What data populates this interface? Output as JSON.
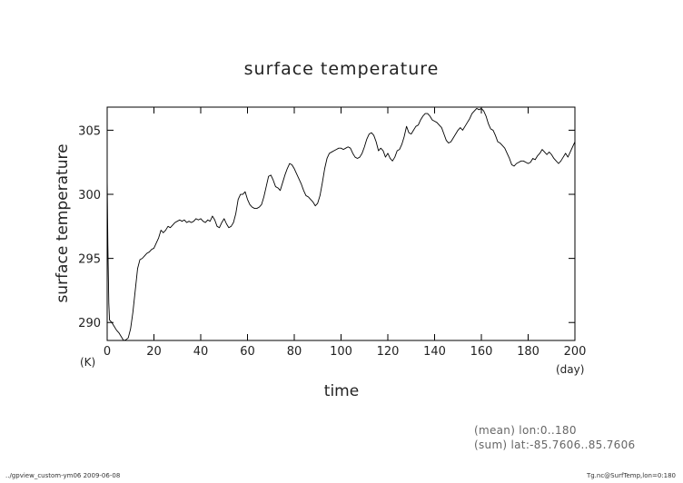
{
  "chart_data": {
    "type": "line",
    "title": "surface temperature",
    "xlabel": "time",
    "xunit": "(day)",
    "ylabel": "surface temperature",
    "yunit": "(K)",
    "xlim": [
      0,
      200
    ],
    "ylim": [
      288.6,
      306.8
    ],
    "xticks": [
      0,
      20,
      40,
      60,
      80,
      100,
      120,
      140,
      160,
      180,
      200
    ],
    "yticks": [
      290,
      295,
      300,
      305
    ],
    "grid": false,
    "series": [
      {
        "color": "#000000",
        "points": [
          [
            0,
            301.3
          ],
          [
            0.3,
            296
          ],
          [
            0.7,
            291.5
          ],
          [
            1,
            290.2
          ],
          [
            2,
            290.0
          ],
          [
            3,
            289.7
          ],
          [
            4,
            289.4
          ],
          [
            5,
            289.2
          ],
          [
            6,
            288.9
          ],
          [
            7,
            288.6
          ],
          [
            8,
            288.65
          ],
          [
            9,
            288.8
          ],
          [
            10,
            289.5
          ],
          [
            11,
            290.8
          ],
          [
            12,
            292.5
          ],
          [
            13,
            294.2
          ],
          [
            14,
            294.9
          ],
          [
            15,
            295.0
          ],
          [
            16,
            295.2
          ],
          [
            17,
            295.4
          ],
          [
            18,
            295.5
          ],
          [
            19,
            295.7
          ],
          [
            20,
            295.8
          ],
          [
            21,
            296.2
          ],
          [
            22,
            296.6
          ],
          [
            23,
            297.2
          ],
          [
            24,
            297.0
          ],
          [
            25,
            297.2
          ],
          [
            26,
            297.5
          ],
          [
            27,
            297.4
          ],
          [
            28,
            297.6
          ],
          [
            29,
            297.8
          ],
          [
            30,
            297.9
          ],
          [
            31,
            298.0
          ],
          [
            32,
            297.9
          ],
          [
            33,
            298.0
          ],
          [
            34,
            297.8
          ],
          [
            35,
            297.9
          ],
          [
            36,
            297.8
          ],
          [
            37,
            297.9
          ],
          [
            38,
            298.1
          ],
          [
            39,
            298.0
          ],
          [
            40,
            298.1
          ],
          [
            41,
            297.9
          ],
          [
            42,
            297.8
          ],
          [
            43,
            298.0
          ],
          [
            44,
            297.9
          ],
          [
            45,
            298.3
          ],
          [
            46,
            298.0
          ],
          [
            47,
            297.5
          ],
          [
            48,
            297.4
          ],
          [
            49,
            297.8
          ],
          [
            50,
            298.1
          ],
          [
            51,
            297.7
          ],
          [
            52,
            297.4
          ],
          [
            53,
            297.5
          ],
          [
            54,
            297.8
          ],
          [
            55,
            298.5
          ],
          [
            56,
            299.6
          ],
          [
            57,
            300.0
          ],
          [
            58,
            300.0
          ],
          [
            59,
            300.2
          ],
          [
            60,
            299.6
          ],
          [
            61,
            299.2
          ],
          [
            62,
            299.0
          ],
          [
            63,
            298.9
          ],
          [
            64,
            298.9
          ],
          [
            65,
            299.0
          ],
          [
            66,
            299.2
          ],
          [
            67,
            299.8
          ],
          [
            68,
            300.6
          ],
          [
            69,
            301.4
          ],
          [
            70,
            301.5
          ],
          [
            71,
            301.1
          ],
          [
            72,
            300.6
          ],
          [
            73,
            300.5
          ],
          [
            74,
            300.3
          ],
          [
            75,
            300.9
          ],
          [
            76,
            301.5
          ],
          [
            77,
            302.0
          ],
          [
            78,
            302.4
          ],
          [
            79,
            302.3
          ],
          [
            80,
            302.0
          ],
          [
            81,
            301.6
          ],
          [
            82,
            301.2
          ],
          [
            83,
            300.8
          ],
          [
            84,
            300.3
          ],
          [
            85,
            299.9
          ],
          [
            86,
            299.8
          ],
          [
            87,
            299.6
          ],
          [
            88,
            299.4
          ],
          [
            89,
            299.1
          ],
          [
            90,
            299.3
          ],
          [
            91,
            299.9
          ],
          [
            92,
            300.9
          ],
          [
            93,
            302.0
          ],
          [
            94,
            302.8
          ],
          [
            95,
            303.2
          ],
          [
            96,
            303.3
          ],
          [
            97,
            303.4
          ],
          [
            98,
            303.5
          ],
          [
            99,
            303.6
          ],
          [
            100,
            303.6
          ],
          [
            101,
            303.5
          ],
          [
            102,
            303.6
          ],
          [
            103,
            303.7
          ],
          [
            104,
            303.6
          ],
          [
            105,
            303.2
          ],
          [
            106,
            302.9
          ],
          [
            107,
            302.8
          ],
          [
            108,
            302.9
          ],
          [
            109,
            303.2
          ],
          [
            110,
            303.7
          ],
          [
            111,
            304.3
          ],
          [
            112,
            304.7
          ],
          [
            113,
            304.8
          ],
          [
            114,
            304.6
          ],
          [
            115,
            304.1
          ],
          [
            116,
            303.4
          ],
          [
            117,
            303.6
          ],
          [
            118,
            303.4
          ],
          [
            119,
            302.9
          ],
          [
            120,
            303.2
          ],
          [
            121,
            302.8
          ],
          [
            122,
            302.6
          ],
          [
            123,
            302.9
          ],
          [
            124,
            303.4
          ],
          [
            125,
            303.5
          ],
          [
            126,
            303.9
          ],
          [
            127,
            304.5
          ],
          [
            128,
            305.3
          ],
          [
            129,
            304.8
          ],
          [
            130,
            304.7
          ],
          [
            131,
            305.0
          ],
          [
            132,
            305.3
          ],
          [
            133,
            305.4
          ],
          [
            134,
            305.8
          ],
          [
            135,
            306.1
          ],
          [
            136,
            306.3
          ],
          [
            137,
            306.3
          ],
          [
            138,
            306.1
          ],
          [
            139,
            305.8
          ],
          [
            140,
            305.7
          ],
          [
            141,
            305.6
          ],
          [
            142,
            305.4
          ],
          [
            143,
            305.2
          ],
          [
            144,
            304.7
          ],
          [
            145,
            304.2
          ],
          [
            146,
            304.0
          ],
          [
            147,
            304.1
          ],
          [
            148,
            304.4
          ],
          [
            149,
            304.7
          ],
          [
            150,
            305.0
          ],
          [
            151,
            305.2
          ],
          [
            152,
            305.0
          ],
          [
            153,
            305.3
          ],
          [
            154,
            305.6
          ],
          [
            155,
            305.9
          ],
          [
            156,
            306.3
          ],
          [
            157,
            306.5
          ],
          [
            158,
            306.7
          ],
          [
            159,
            306.6
          ],
          [
            160,
            306.7
          ],
          [
            161,
            306.5
          ],
          [
            162,
            306.1
          ],
          [
            163,
            305.5
          ],
          [
            164,
            305.1
          ],
          [
            165,
            305.0
          ],
          [
            166,
            304.6
          ],
          [
            167,
            304.1
          ],
          [
            168,
            304.0
          ],
          [
            169,
            303.8
          ],
          [
            170,
            303.6
          ],
          [
            171,
            303.2
          ],
          [
            172,
            302.8
          ],
          [
            173,
            302.3
          ],
          [
            174,
            302.2
          ],
          [
            175,
            302.4
          ],
          [
            176,
            302.5
          ],
          [
            177,
            302.6
          ],
          [
            178,
            302.6
          ],
          [
            179,
            302.5
          ],
          [
            180,
            302.4
          ],
          [
            181,
            302.5
          ],
          [
            182,
            302.8
          ],
          [
            183,
            302.7
          ],
          [
            184,
            303.0
          ],
          [
            185,
            303.2
          ],
          [
            186,
            303.5
          ],
          [
            187,
            303.3
          ],
          [
            188,
            303.1
          ],
          [
            189,
            303.3
          ],
          [
            190,
            303.1
          ],
          [
            191,
            302.8
          ],
          [
            192,
            302.6
          ],
          [
            193,
            302.4
          ],
          [
            194,
            302.6
          ],
          [
            195,
            302.9
          ],
          [
            196,
            303.2
          ],
          [
            197,
            302.9
          ],
          [
            198,
            303.3
          ],
          [
            199,
            303.7
          ],
          [
            200,
            304.1
          ]
        ]
      }
    ]
  },
  "annotations": {
    "mean": "(mean) lon:0..180",
    "sum": "(sum) lat:-85.7606..85.7606"
  },
  "footer": {
    "left": "../gpview_custom-ym06  2009-06-08",
    "right": "Tg.nc@SurfTemp,lon=0:180"
  }
}
